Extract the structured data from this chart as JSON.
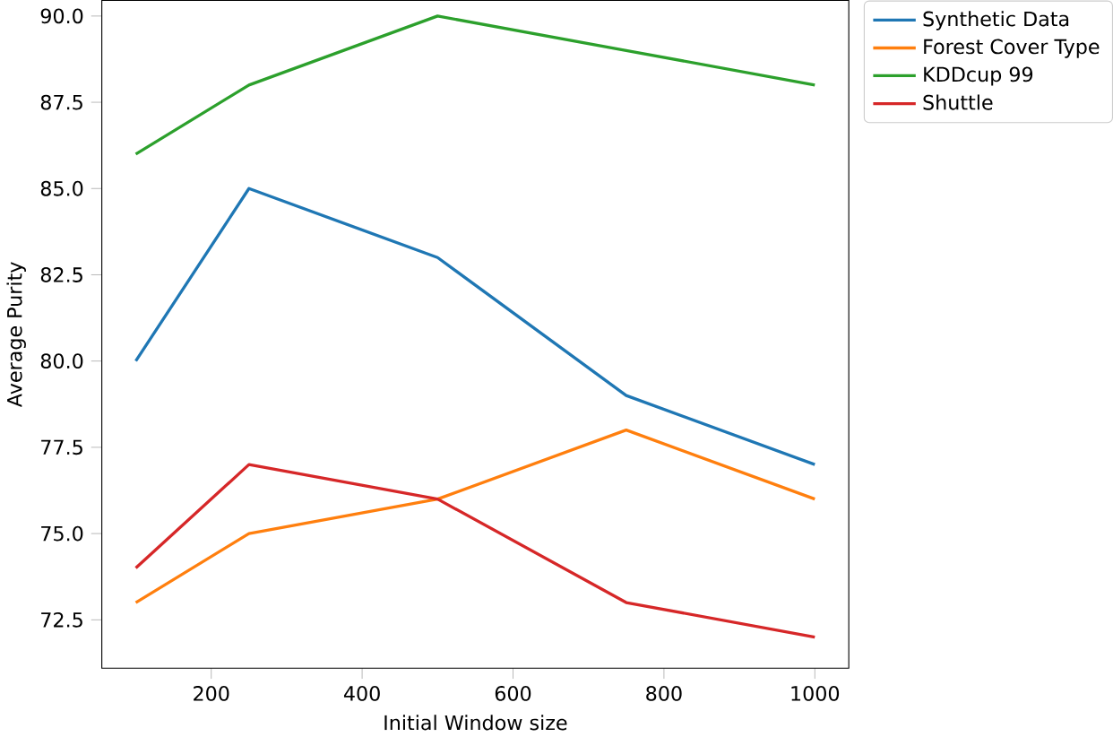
{
  "chart_data": {
    "type": "line",
    "xlabel": "Initial Window size",
    "ylabel": "Average Purity",
    "x": [
      100,
      250,
      500,
      750,
      1000
    ],
    "series": [
      {
        "name": "Synthetic Data",
        "color": "#1f77b4",
        "values": [
          80,
          85,
          83,
          79,
          77
        ]
      },
      {
        "name": "Forest Cover Type",
        "color": "#ff7f0e",
        "values": [
          73,
          75,
          76,
          78,
          76
        ]
      },
      {
        "name": "KDDcup 99",
        "color": "#2ca02c",
        "values": [
          86,
          88,
          90,
          89,
          88
        ]
      },
      {
        "name": "Shuttle",
        "color": "#d62728",
        "values": [
          74,
          77,
          76,
          73,
          72
        ]
      }
    ],
    "xlim": [
      55,
      1045
    ],
    "ylim": [
      71.1,
      90.45
    ],
    "xticks": [
      200,
      400,
      600,
      800,
      1000
    ],
    "yticks": [
      72.5,
      {
        "value": 75,
        "label": "75.0"
      },
      77.5,
      {
        "value": 80,
        "label": "80.0"
      },
      82.5,
      {
        "value": 85,
        "label": "85.0"
      },
      87.5,
      {
        "value": 90,
        "label": "90.0"
      }
    ],
    "grid": false,
    "legend": "top right",
    "marker": "none",
    "line_style": "solid"
  }
}
